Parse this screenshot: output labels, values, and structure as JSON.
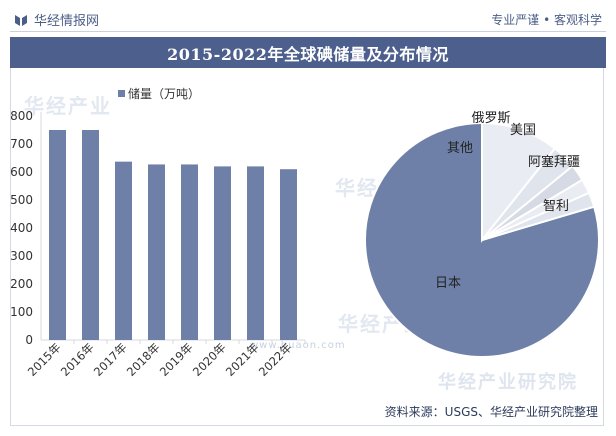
{
  "header": {
    "brand": "华经情报网",
    "slogan": "专业严谨 • 客观科学"
  },
  "title": "2015-2022年全球碘储量及分布情况",
  "watermarks": {
    "brand1": "华经产业",
    "brand2": "华经产业研究院",
    "url": "www.huaon.com"
  },
  "source": "资料来源：USGS、华经产业研究院整理",
  "colors": {
    "bar": "#6e80a8",
    "pie_main": "#6e80a8",
    "pie_light": "#e9ecf2",
    "title_bg": "#4c5f8d",
    "axis": "#d5d9e1"
  },
  "chart_data": [
    {
      "type": "bar",
      "legend": "储量（万吨）",
      "legend_position": "top-left",
      "categories": [
        "2015年",
        "2016年",
        "2017年",
        "2018年",
        "2019年",
        "2020年",
        "2021年",
        "2022年"
      ],
      "values": [
        750,
        750,
        637,
        627,
        627,
        620,
        620,
        610
      ],
      "ylim": [
        0,
        800
      ],
      "yticks": [
        0,
        100,
        200,
        300,
        400,
        500,
        600,
        700,
        800
      ],
      "grid": false
    },
    {
      "type": "pie",
      "labels": [
        "日本",
        "智利",
        "阿塞拜疆",
        "美国",
        "俄罗斯",
        "其他"
      ],
      "values": [
        79.6,
        10.7,
        3.4,
        2.3,
        2.0,
        2.0
      ],
      "colors": [
        "#6e80a8",
        "#e9ecf2",
        "#e0e4ec",
        "#d5dae4",
        "#e9ecf2",
        "#e0e4ec"
      ]
    }
  ]
}
